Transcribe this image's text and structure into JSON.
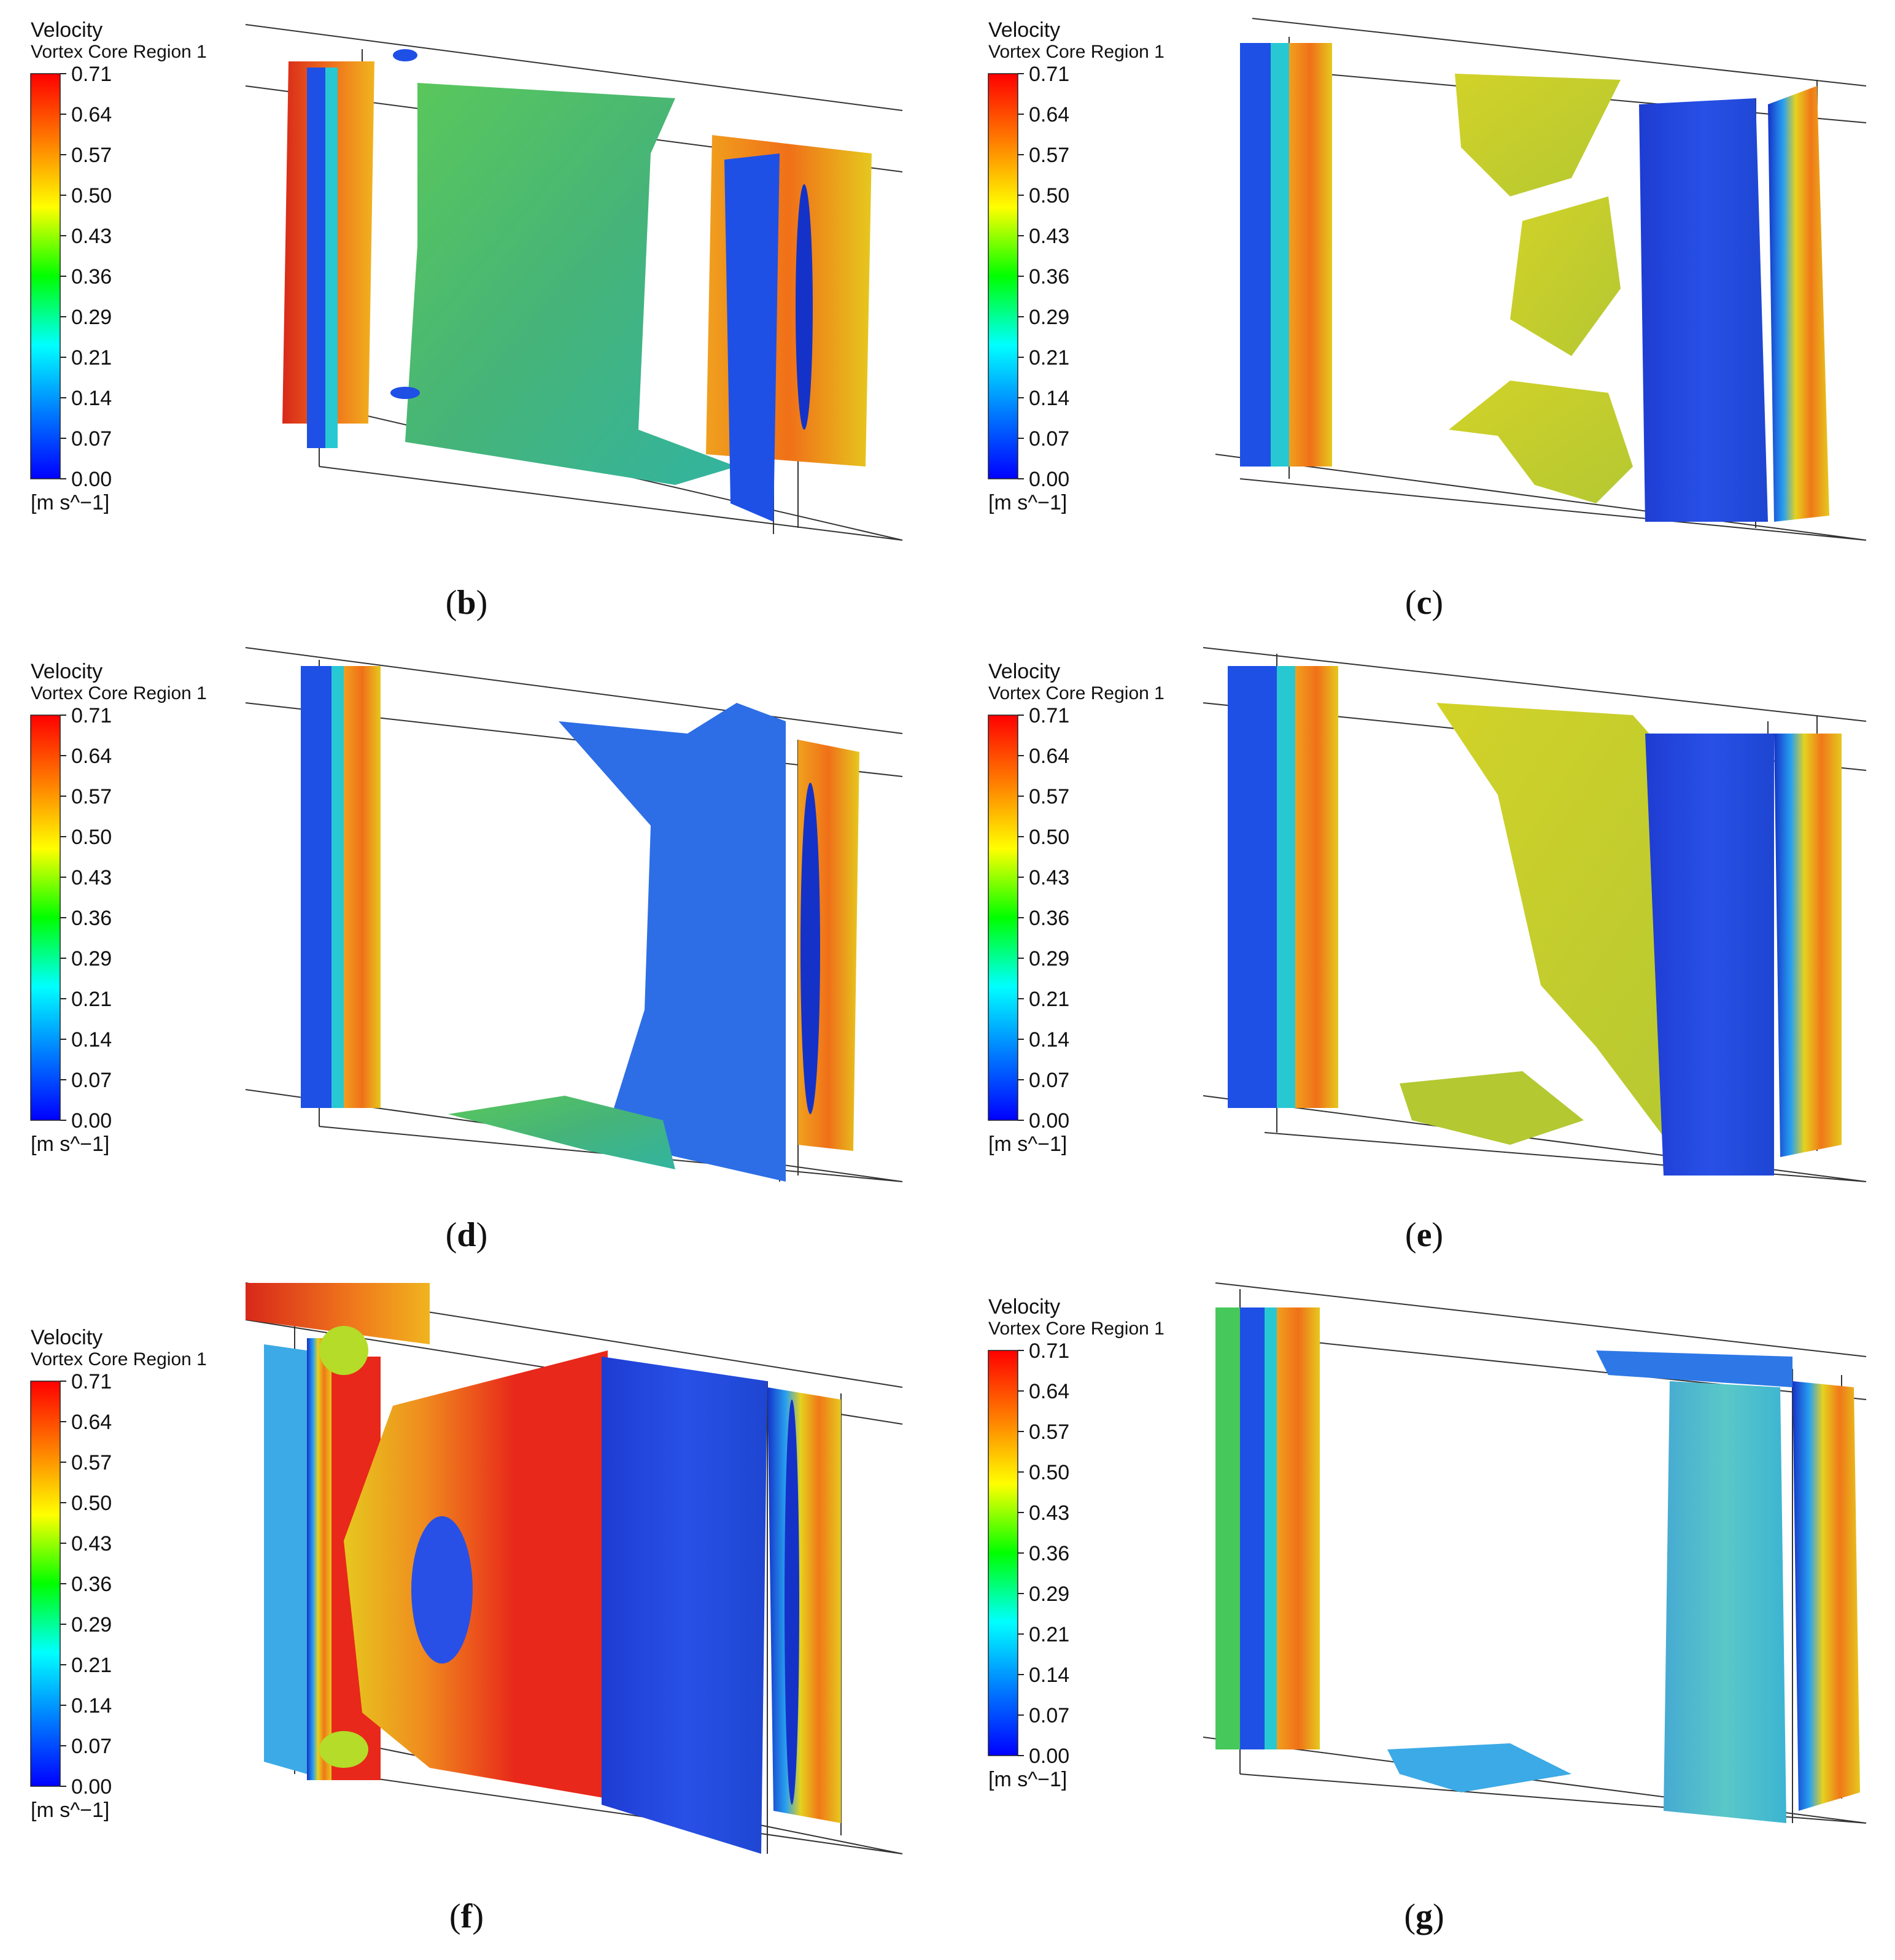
{
  "legend": {
    "title": "Velocity",
    "subtitle": "Vortex Core Region 1",
    "ticks": [
      "0.71",
      "0.64",
      "0.57",
      "0.50",
      "0.43",
      "0.36",
      "0.29",
      "0.21",
      "0.14",
      "0.07",
      "0.00"
    ],
    "unit": "[m s^−1]",
    "colors": [
      "#ff0000",
      "#ff8000",
      "#ffff00",
      "#00ff00",
      "#00ffff",
      "#0080ff",
      "#0000ff"
    ]
  },
  "panels": [
    {
      "label": "b",
      "caption_open": "(",
      "caption_close": ")"
    },
    {
      "label": "c",
      "caption_open": "(",
      "caption_close": ")"
    },
    {
      "label": "d",
      "caption_open": "(",
      "caption_close": ")"
    },
    {
      "label": "e",
      "caption_open": "(",
      "caption_close": ")"
    },
    {
      "label": "f",
      "caption_open": "(",
      "caption_close": ")"
    },
    {
      "label": "g",
      "caption_open": "(",
      "caption_close": ")"
    }
  ],
  "palette": {
    "red": "#e82a10",
    "orange": "#f08c1e",
    "yellow": "#e6d21e",
    "lime": "#b4dc28",
    "green": "#46c85a",
    "cyan": "#28c8d2",
    "lightblue": "#3caae6",
    "blue": "#1e50e6",
    "navy": "#1432c8"
  }
}
